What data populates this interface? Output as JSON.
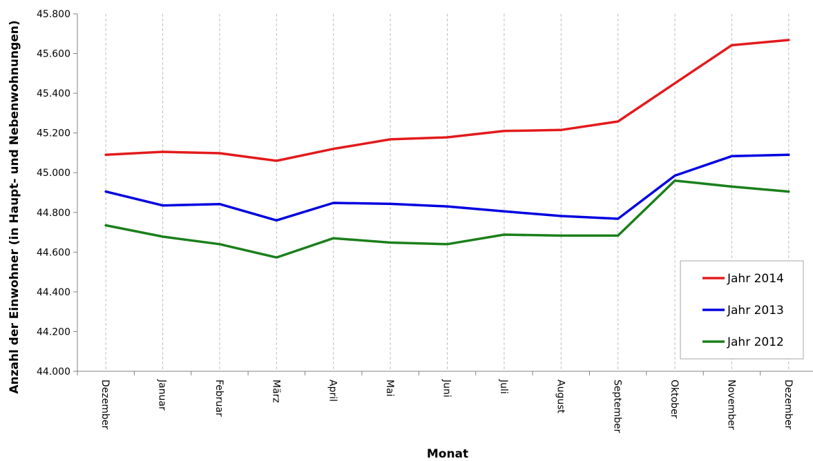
{
  "chart_data": {
    "type": "line",
    "title": "",
    "xlabel": "Monat",
    "ylabel": "Anzahl der Einwohner (in Haupt- und Nebenwohnungen)",
    "categories": [
      "Dezember",
      "Januar",
      "Februar",
      "März",
      "April",
      "Mai",
      "Juni",
      "Juli",
      "August",
      "September",
      "Oktober",
      "November",
      "Dezember"
    ],
    "ylim": [
      44000,
      45800
    ],
    "yticks": [
      44000,
      44200,
      44400,
      44600,
      44800,
      45000,
      45200,
      45400,
      45600,
      45800
    ],
    "ytick_labels": [
      "44.000",
      "44.200",
      "44.400",
      "44.600",
      "44.800",
      "45.000",
      "45.200",
      "45.400",
      "45.600",
      "45.800"
    ],
    "grid": "vertical-dashed",
    "legend_position": "bottom-right",
    "series": [
      {
        "name": "Jahr 2014",
        "color": "#e31a1c",
        "values": [
          45090,
          45105,
          45098,
          45060,
          45120,
          45168,
          45178,
          45210,
          45215,
          45258,
          45450,
          45642,
          45668
        ]
      },
      {
        "name": "Jahr 2013",
        "color": "#0000e0",
        "values": [
          44905,
          44835,
          44842,
          44760,
          44848,
          44843,
          44830,
          44805,
          44782,
          44768,
          44985,
          45083,
          45090
        ]
      },
      {
        "name": "Jahr 2012",
        "color": "#1a7f1a",
        "values": [
          44735,
          44678,
          44640,
          44573,
          44670,
          44648,
          44640,
          44688,
          44683,
          44683,
          44960,
          44930,
          44905
        ]
      }
    ]
  }
}
